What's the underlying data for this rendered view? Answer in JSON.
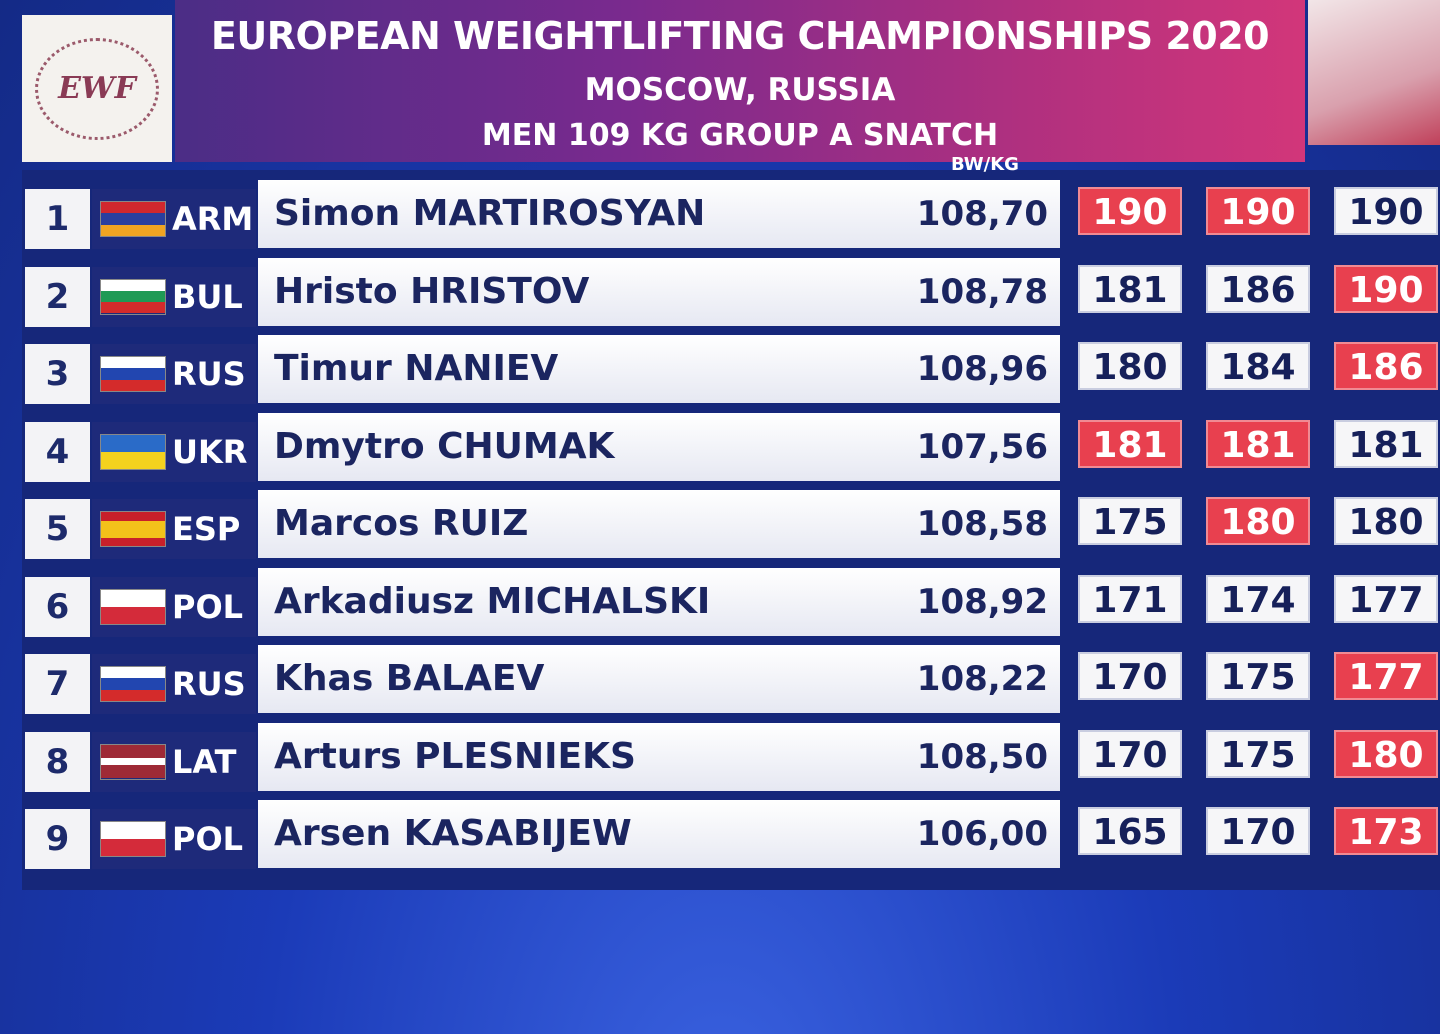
{
  "header": {
    "logo": "EWF",
    "title": "EUROPEAN WEIGHTLIFTING CHAMPIONSHIPS 2020",
    "location": "MOSCOW, RUSSIA",
    "event": "MEN 109 KG GROUP A SNATCH",
    "column_label": "BW/KG"
  },
  "table": {
    "rows": [
      {
        "rank": "1",
        "country": "ARM",
        "flag": [
          "#d0282e",
          "#2a3f9e",
          "#f0a422"
        ],
        "name": "Simon MARTIROSYAN",
        "bodyweight": "108,70",
        "attempts": [
          {
            "weight": "190",
            "made": false
          },
          {
            "weight": "190",
            "made": false
          },
          {
            "weight": "190",
            "made": true
          }
        ]
      },
      {
        "rank": "2",
        "country": "BUL",
        "flag": [
          "#ffffff",
          "#1f9a55",
          "#d42b2b"
        ],
        "name": "Hristo HRISTOV",
        "bodyweight": "108,78",
        "attempts": [
          {
            "weight": "181",
            "made": true
          },
          {
            "weight": "186",
            "made": true
          },
          {
            "weight": "190",
            "made": false
          }
        ]
      },
      {
        "rank": "3",
        "country": "RUS",
        "flag": [
          "#ffffff",
          "#2246b0",
          "#d42b2b"
        ],
        "name": "Timur NANIEV",
        "bodyweight": "108,96",
        "attempts": [
          {
            "weight": "180",
            "made": true
          },
          {
            "weight": "184",
            "made": true
          },
          {
            "weight": "186",
            "made": false
          }
        ]
      },
      {
        "rank": "4",
        "country": "UKR",
        "flag": [
          "#2a6bc8",
          "#f4d21e"
        ],
        "name": "Dmytro CHUMAK",
        "bodyweight": "107,56",
        "attempts": [
          {
            "weight": "181",
            "made": false
          },
          {
            "weight": "181",
            "made": false
          },
          {
            "weight": "181",
            "made": true
          }
        ]
      },
      {
        "rank": "5",
        "country": "ESP",
        "flag": [
          "#c8202a",
          "#f3c21a",
          "#f3c21a",
          "#c8202a"
        ],
        "name": "Marcos RUIZ",
        "bodyweight": "108,58",
        "attempts": [
          {
            "weight": "175",
            "made": true
          },
          {
            "weight": "180",
            "made": false
          },
          {
            "weight": "180",
            "made": true
          }
        ]
      },
      {
        "rank": "6",
        "country": "POL",
        "flag": [
          "#ffffff",
          "#d42b3a"
        ],
        "name": "Arkadiusz MICHALSKI",
        "bodyweight": "108,92",
        "attempts": [
          {
            "weight": "171",
            "made": true
          },
          {
            "weight": "174",
            "made": true
          },
          {
            "weight": "177",
            "made": true
          }
        ]
      },
      {
        "rank": "7",
        "country": "RUS",
        "flag": [
          "#ffffff",
          "#2246b0",
          "#d42b2b"
        ],
        "name": "Khas BALAEV",
        "bodyweight": "108,22",
        "attempts": [
          {
            "weight": "170",
            "made": true
          },
          {
            "weight": "175",
            "made": true
          },
          {
            "weight": "177",
            "made": false
          }
        ]
      },
      {
        "rank": "8",
        "country": "LAT",
        "flag": [
          "#9e2a36",
          "#9e2a36",
          "#ffffff",
          "#9e2a36",
          "#9e2a36"
        ],
        "name": "Arturs PLESNIEKS",
        "bodyweight": "108,50",
        "attempts": [
          {
            "weight": "170",
            "made": true
          },
          {
            "weight": "175",
            "made": true
          },
          {
            "weight": "180",
            "made": false
          }
        ]
      },
      {
        "rank": "9",
        "country": "POL",
        "flag": [
          "#ffffff",
          "#d42b3a"
        ],
        "name": "Arsen KASABIJEW",
        "bodyweight": "106,00",
        "attempts": [
          {
            "weight": "165",
            "made": true
          },
          {
            "weight": "170",
            "made": true
          },
          {
            "weight": "173",
            "made": false
          }
        ]
      }
    ]
  }
}
